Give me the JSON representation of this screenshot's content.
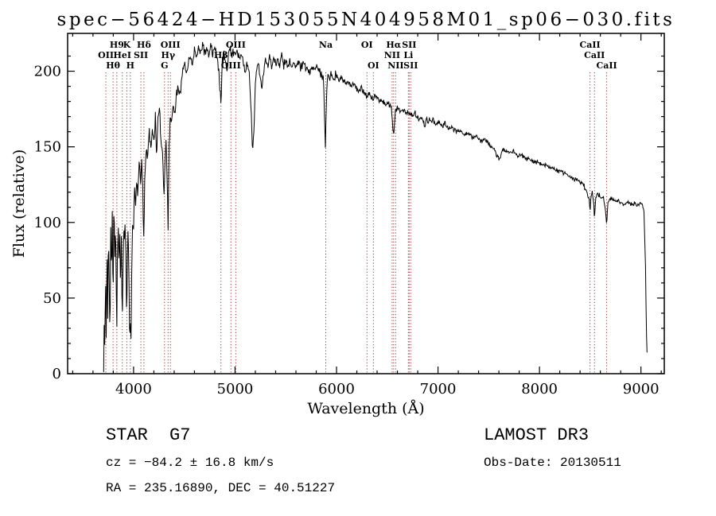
{
  "chart_data": {
    "type": "line",
    "title": "spec−56424−HD153055N404958M01_sp06−030.fits",
    "xlabel": "Wavelength (Å)",
    "ylabel": "Flux (relative)",
    "xlim": [
      3350,
      9230
    ],
    "ylim": [
      0,
      225
    ],
    "xticks": [
      4000,
      5000,
      6000,
      7000,
      8000,
      9000
    ],
    "yticks": [
      0,
      50,
      100,
      150,
      200
    ],
    "x_minor_step": 200,
    "y_minor_step": 10,
    "grid": false,
    "legend": "none",
    "series": [
      {
        "name": "flux",
        "color": "#000000",
        "points": [
          [
            3705,
            4
          ],
          [
            3711,
            42
          ],
          [
            3717,
            15
          ],
          [
            3724,
            60
          ],
          [
            3731,
            25
          ],
          [
            3738,
            85
          ],
          [
            3745,
            38
          ],
          [
            3753,
            95
          ],
          [
            3760,
            52
          ],
          [
            3768,
            30
          ],
          [
            3776,
            96
          ],
          [
            3783,
            62
          ],
          [
            3790,
            102
          ],
          [
            3798,
            46
          ],
          [
            3806,
            108
          ],
          [
            3814,
            82
          ],
          [
            3822,
            100
          ],
          [
            3829,
            62
          ],
          [
            3835,
            38
          ],
          [
            3842,
            88
          ],
          [
            3850,
            102
          ],
          [
            3857,
            70
          ],
          [
            3864,
            95
          ],
          [
            3872,
            58
          ],
          [
            3880,
            86
          ],
          [
            3889,
            34
          ],
          [
            3897,
            80
          ],
          [
            3905,
            100
          ],
          [
            3912,
            86
          ],
          [
            3920,
            96
          ],
          [
            3927,
            70
          ],
          [
            3933,
            30
          ],
          [
            3940,
            76
          ],
          [
            3948,
            95
          ],
          [
            3955,
            58
          ],
          [
            3961,
            22
          ],
          [
            3968,
            40
          ],
          [
            3975,
            16
          ],
          [
            3982,
            72
          ],
          [
            3990,
            105
          ],
          [
            4000,
            96
          ],
          [
            4010,
            122
          ],
          [
            4020,
            110
          ],
          [
            4030,
            128
          ],
          [
            4042,
            118
          ],
          [
            4055,
            140
          ],
          [
            4068,
            126
          ],
          [
            4080,
            138
          ],
          [
            4090,
            120
          ],
          [
            4101,
            86
          ],
          [
            4112,
            136
          ],
          [
            4125,
            150
          ],
          [
            4140,
            143
          ],
          [
            4155,
            158
          ],
          [
            4170,
            149
          ],
          [
            4185,
            162
          ],
          [
            4200,
            156
          ],
          [
            4215,
            168
          ],
          [
            4227,
            146
          ],
          [
            4240,
            168
          ],
          [
            4255,
            172
          ],
          [
            4270,
            156
          ],
          [
            4285,
            148
          ],
          [
            4300,
            118
          ],
          [
            4310,
            136
          ],
          [
            4322,
            156
          ],
          [
            4333,
            122
          ],
          [
            4340,
            96
          ],
          [
            4350,
            152
          ],
          [
            4360,
            172
          ],
          [
            4375,
            168
          ],
          [
            4390,
            178
          ],
          [
            4405,
            173
          ],
          [
            4420,
            182
          ],
          [
            4440,
            190
          ],
          [
            4460,
            184
          ],
          [
            4480,
            198
          ],
          [
            4500,
            205
          ],
          [
            4520,
            198
          ],
          [
            4540,
            206
          ],
          [
            4560,
            211
          ],
          [
            4580,
            203
          ],
          [
            4600,
            214
          ],
          [
            4620,
            208
          ],
          [
            4640,
            216
          ],
          [
            4660,
            210
          ],
          [
            4680,
            218
          ],
          [
            4700,
            212
          ],
          [
            4720,
            216
          ],
          [
            4740,
            210
          ],
          [
            4760,
            217
          ],
          [
            4780,
            212
          ],
          [
            4800,
            216
          ],
          [
            4820,
            208
          ],
          [
            4840,
            200
          ],
          [
            4861,
            178
          ],
          [
            4875,
            206
          ],
          [
            4890,
            214
          ],
          [
            4905,
            208
          ],
          [
            4920,
            200
          ],
          [
            4935,
            212
          ],
          [
            4950,
            216
          ],
          [
            4965,
            210
          ],
          [
            4980,
            214
          ],
          [
            5000,
            210
          ],
          [
            5020,
            214
          ],
          [
            5040,
            208
          ],
          [
            5060,
            212
          ],
          [
            5080,
            206
          ],
          [
            5100,
            198
          ],
          [
            5120,
            206
          ],
          [
            5140,
            198
          ],
          [
            5160,
            172
          ],
          [
            5172,
            148
          ],
          [
            5185,
            160
          ],
          [
            5198,
            190
          ],
          [
            5212,
            200
          ],
          [
            5228,
            206
          ],
          [
            5245,
            198
          ],
          [
            5262,
            188
          ],
          [
            5280,
            200
          ],
          [
            5300,
            208
          ],
          [
            5320,
            203
          ],
          [
            5340,
            209
          ],
          [
            5360,
            204
          ],
          [
            5380,
            208
          ],
          [
            5400,
            204
          ],
          [
            5420,
            208
          ],
          [
            5440,
            205
          ],
          [
            5460,
            209
          ],
          [
            5480,
            204
          ],
          [
            5500,
            207
          ],
          [
            5520,
            203
          ],
          [
            5540,
            207
          ],
          [
            5560,
            203
          ],
          [
            5580,
            206
          ],
          [
            5600,
            203
          ],
          [
            5625,
            206
          ],
          [
            5650,
            202
          ],
          [
            5675,
            205
          ],
          [
            5700,
            202
          ],
          [
            5725,
            199
          ],
          [
            5750,
            203
          ],
          [
            5775,
            200
          ],
          [
            5800,
            203
          ],
          [
            5825,
            200
          ],
          [
            5850,
            198
          ],
          [
            5870,
            195
          ],
          [
            5890,
            153
          ],
          [
            5902,
            186
          ],
          [
            5915,
            199
          ],
          [
            5930,
            197
          ],
          [
            5950,
            198
          ],
          [
            5975,
            196
          ],
          [
            6000,
            197
          ],
          [
            6030,
            194
          ],
          [
            6060,
            195
          ],
          [
            6090,
            192
          ],
          [
            6120,
            193
          ],
          [
            6150,
            190
          ],
          [
            6180,
            191
          ],
          [
            6210,
            188
          ],
          [
            6240,
            189
          ],
          [
            6270,
            186
          ],
          [
            6300,
            183
          ],
          [
            6330,
            185
          ],
          [
            6360,
            182
          ],
          [
            6390,
            183
          ],
          [
            6420,
            180
          ],
          [
            6450,
            181
          ],
          [
            6480,
            178
          ],
          [
            6510,
            179
          ],
          [
            6540,
            175
          ],
          [
            6563,
            158
          ],
          [
            6580,
            174
          ],
          [
            6600,
            176
          ],
          [
            6630,
            174
          ],
          [
            6660,
            175
          ],
          [
            6690,
            172
          ],
          [
            6720,
            173
          ],
          [
            6750,
            171
          ],
          [
            6780,
            172
          ],
          [
            6810,
            169
          ],
          [
            6840,
            170
          ],
          [
            6870,
            164
          ],
          [
            6890,
            168
          ],
          [
            6920,
            167
          ],
          [
            6950,
            168
          ],
          [
            6980,
            165
          ],
          [
            7010,
            166
          ],
          [
            7040,
            164
          ],
          [
            7070,
            165
          ],
          [
            7100,
            162
          ],
          [
            7140,
            163
          ],
          [
            7180,
            160
          ],
          [
            7220,
            161
          ],
          [
            7260,
            158
          ],
          [
            7300,
            159
          ],
          [
            7340,
            156
          ],
          [
            7380,
            157
          ],
          [
            7420,
            154
          ],
          [
            7460,
            155
          ],
          [
            7500,
            152
          ],
          [
            7540,
            150
          ],
          [
            7580,
            144
          ],
          [
            7605,
            141
          ],
          [
            7630,
            147
          ],
          [
            7660,
            148
          ],
          [
            7700,
            146
          ],
          [
            7740,
            147
          ],
          [
            7780,
            144
          ],
          [
            7820,
            145
          ],
          [
            7860,
            142
          ],
          [
            7900,
            142
          ],
          [
            7940,
            140
          ],
          [
            7980,
            140
          ],
          [
            8020,
            138
          ],
          [
            8060,
            138
          ],
          [
            8100,
            136
          ],
          [
            8140,
            136
          ],
          [
            8180,
            134
          ],
          [
            8220,
            133
          ],
          [
            8260,
            132
          ],
          [
            8300,
            130
          ],
          [
            8340,
            129
          ],
          [
            8380,
            127
          ],
          [
            8420,
            126
          ],
          [
            8460,
            122
          ],
          [
            8490,
            115
          ],
          [
            8498,
            106
          ],
          [
            8508,
            118
          ],
          [
            8520,
            121
          ],
          [
            8535,
            112
          ],
          [
            8542,
            101
          ],
          [
            8552,
            115
          ],
          [
            8570,
            119
          ],
          [
            8590,
            118
          ],
          [
            8610,
            117
          ],
          [
            8630,
            116
          ],
          [
            8650,
            108
          ],
          [
            8662,
            97
          ],
          [
            8672,
            112
          ],
          [
            8690,
            116
          ],
          [
            8720,
            115
          ],
          [
            8750,
            114
          ],
          [
            8780,
            114
          ],
          [
            8810,
            113
          ],
          [
            8840,
            112
          ],
          [
            8870,
            113
          ],
          [
            8900,
            112
          ],
          [
            8930,
            113
          ],
          [
            8960,
            111
          ],
          [
            8990,
            113
          ],
          [
            9010,
            112
          ],
          [
            9030,
            108
          ],
          [
            9045,
            70
          ],
          [
            9055,
            25
          ],
          [
            9060,
            14
          ]
        ]
      }
    ],
    "noise": {
      "seed": 11,
      "step": 5,
      "segments": [
        [
          3690,
          4000,
          10
        ],
        [
          4000,
          4450,
          6
        ],
        [
          4450,
          6050,
          4
        ],
        [
          6050,
          7200,
          2.5
        ],
        [
          7200,
          9100,
          1.8
        ]
      ]
    },
    "line_markers": {
      "color": "#993333",
      "items": [
        {
          "label": "H9",
          "wavelength": 3835,
          "row": 0
        },
        {
          "label": "K",
          "wavelength": 3933,
          "row": 0
        },
        {
          "label": "Hδ",
          "wavelength": 4102,
          "row": 0
        },
        {
          "label": "OIII",
          "wavelength": 4363,
          "row": 0
        },
        {
          "label": "OIII",
          "wavelength": 5007,
          "row": 0
        },
        {
          "label": "Na",
          "wavelength": 5894,
          "row": 0
        },
        {
          "label": "OI",
          "wavelength": 6300,
          "row": 0
        },
        {
          "label": "Hα",
          "wavelength": 6563,
          "row": 0
        },
        {
          "label": "SII",
          "wavelength": 6716,
          "row": 0
        },
        {
          "label": "CaII",
          "wavelength": 8498,
          "row": 0
        },
        {
          "label": "OII",
          "wavelength": 3727,
          "row": 1
        },
        {
          "label": "HeI",
          "wavelength": 3889,
          "row": 1
        },
        {
          "label": "SII",
          "wavelength": 4072,
          "row": 1
        },
        {
          "label": "Hγ",
          "wavelength": 4340,
          "row": 1
        },
        {
          "label": "Hβ",
          "wavelength": 4861,
          "row": 1
        },
        {
          "label": "NII",
          "wavelength": 6548,
          "row": 1
        },
        {
          "label": "Li",
          "wavelength": 6708,
          "row": 1
        },
        {
          "label": "CaII",
          "wavelength": 8542,
          "row": 1
        },
        {
          "label": "Hθ",
          "wavelength": 3798,
          "row": 2
        },
        {
          "label": "H",
          "wavelength": 3968,
          "row": 2
        },
        {
          "label": "G",
          "wavelength": 4305,
          "row": 2
        },
        {
          "label": "OIII",
          "wavelength": 4959,
          "row": 2
        },
        {
          "label": "OI",
          "wavelength": 6363,
          "row": 2
        },
        {
          "label": "NII",
          "wavelength": 6583,
          "row": 2
        },
        {
          "label": "SII",
          "wavelength": 6731,
          "row": 2
        },
        {
          "label": "CaII",
          "wavelength": 8662,
          "row": 2
        }
      ]
    }
  },
  "footer": {
    "object_type": "STAR",
    "subclass": "G7",
    "survey": "LAMOST DR3",
    "cz": "cz = −84.2 ± 16.8 km/s",
    "obs_date": "Obs-Date: 20130511",
    "ra_dec": "RA = 235.16890, DEC =  40.51227"
  }
}
